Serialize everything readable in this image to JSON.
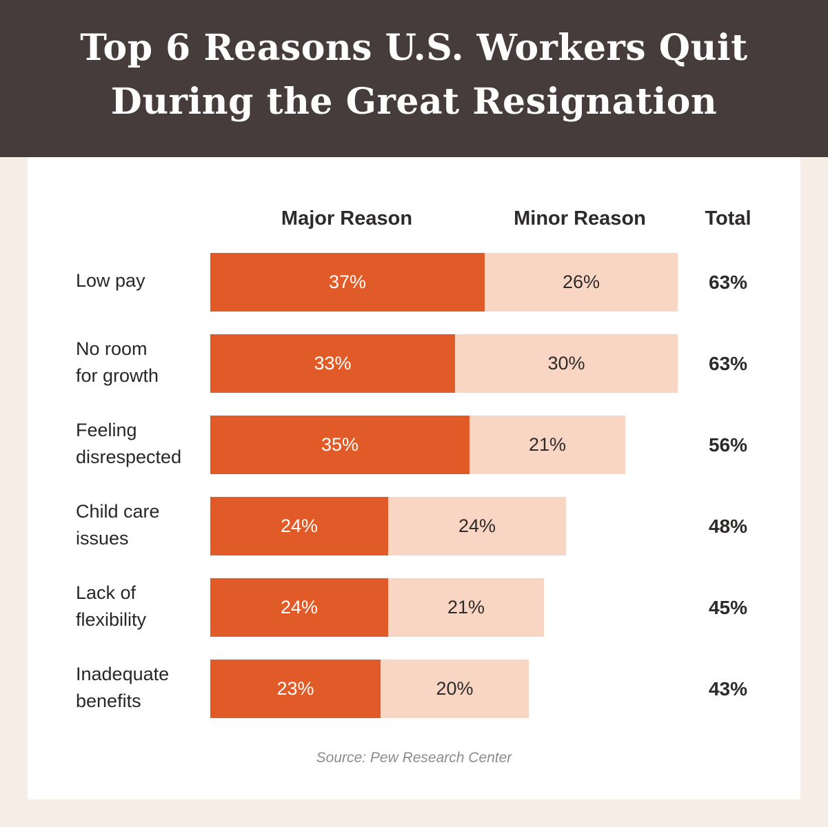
{
  "header": {
    "title_line1": "Top 6 Reasons U.S. Workers Quit",
    "title_line2": "During the Great Resignation"
  },
  "colors": {
    "header_bg": "#463c3c",
    "major": "#e05b27",
    "minor": "#f8d6c3",
    "page_bg": "#f6ede6"
  },
  "columns": {
    "major": "Major Reason",
    "minor": "Minor Reason",
    "total": "Total"
  },
  "source": "Source: Pew Research Center",
  "chart_data": {
    "type": "bar",
    "orientation": "horizontal",
    "stacked": true,
    "categories": [
      "Low pay",
      "No room\nfor growth",
      "Feeling\ndisrespected",
      "Child care\nissues",
      "Lack of\nflexibility",
      "Inadequate\nbenefits"
    ],
    "series": [
      {
        "name": "Major Reason",
        "values": [
          37,
          33,
          35,
          24,
          24,
          23
        ]
      },
      {
        "name": "Minor Reason",
        "values": [
          26,
          30,
          21,
          24,
          21,
          20
        ]
      }
    ],
    "totals": [
      63,
      63,
      56,
      48,
      45,
      43
    ],
    "value_labels": {
      "major": [
        "37%",
        "33%",
        "35%",
        "24%",
        "24%",
        "23%"
      ],
      "minor": [
        "26%",
        "30%",
        "21%",
        "24%",
        "21%",
        "20%"
      ],
      "total": [
        "63%",
        "63%",
        "56%",
        "48%",
        "45%",
        "43%"
      ]
    },
    "unit": "%",
    "title": "Top 6 Reasons U.S. Workers Quit During the Great Resignation"
  }
}
